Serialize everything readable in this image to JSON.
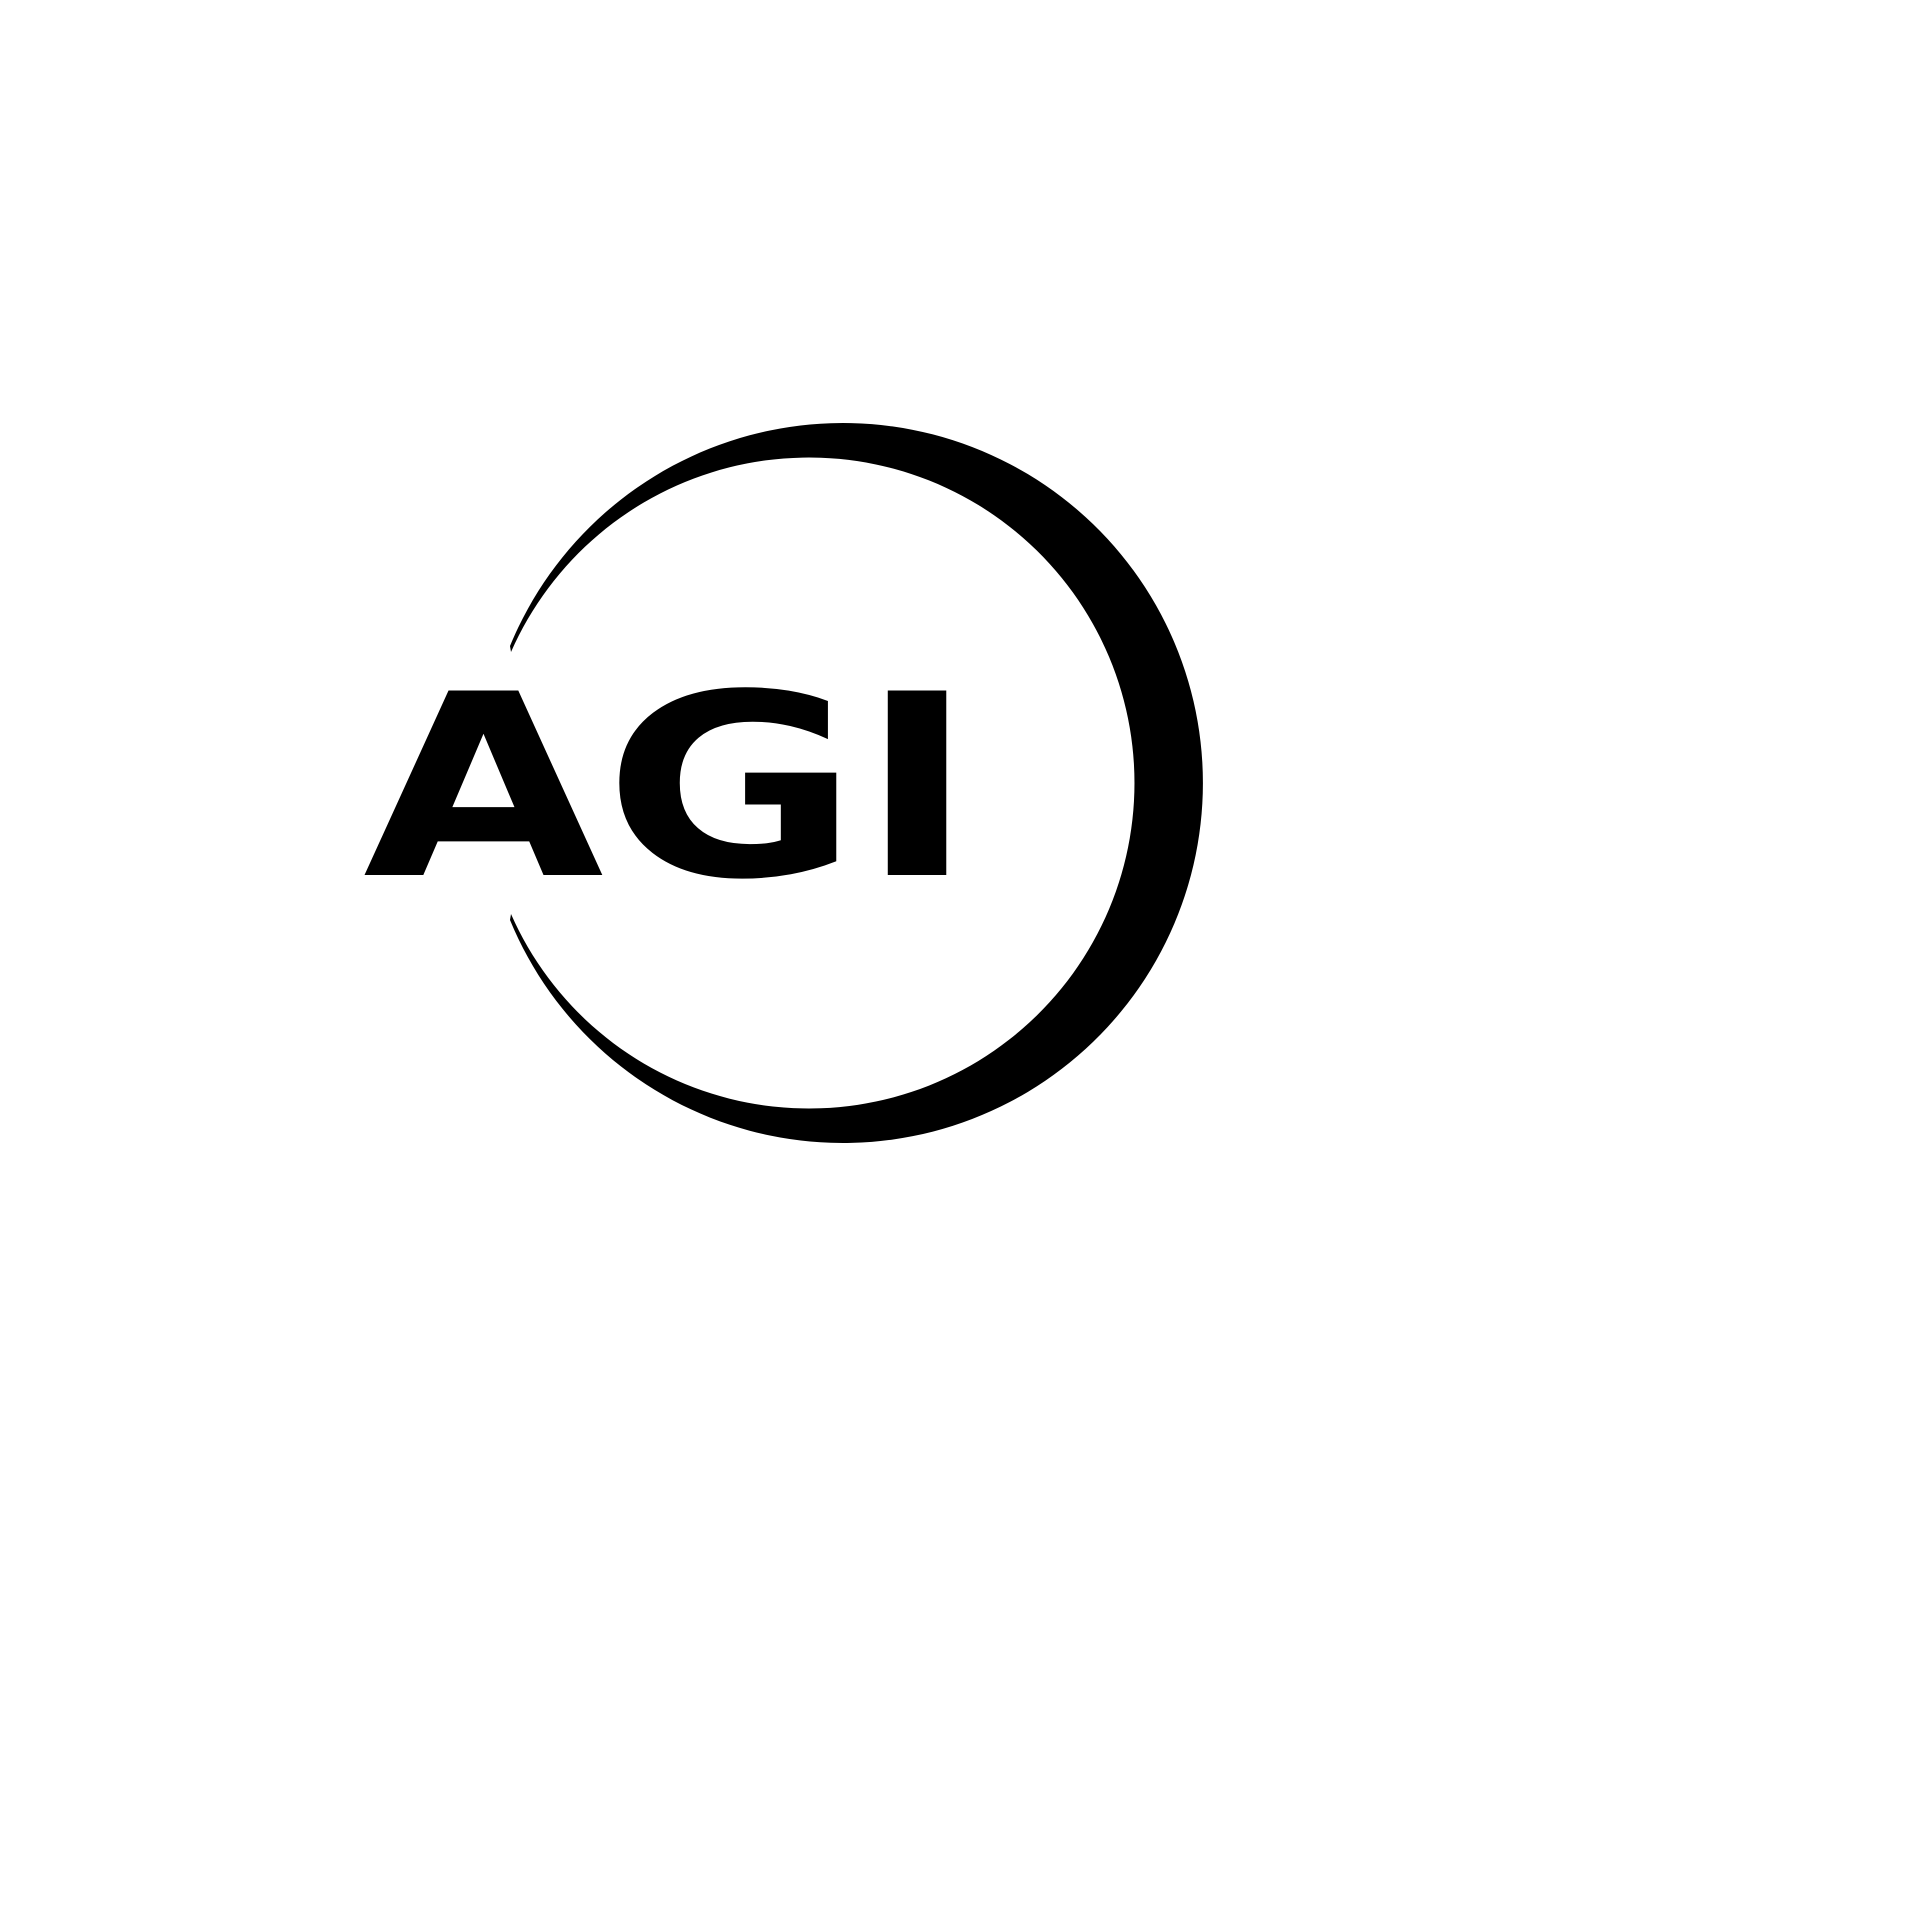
{
  "logo": {
    "text": "AGI"
  }
}
